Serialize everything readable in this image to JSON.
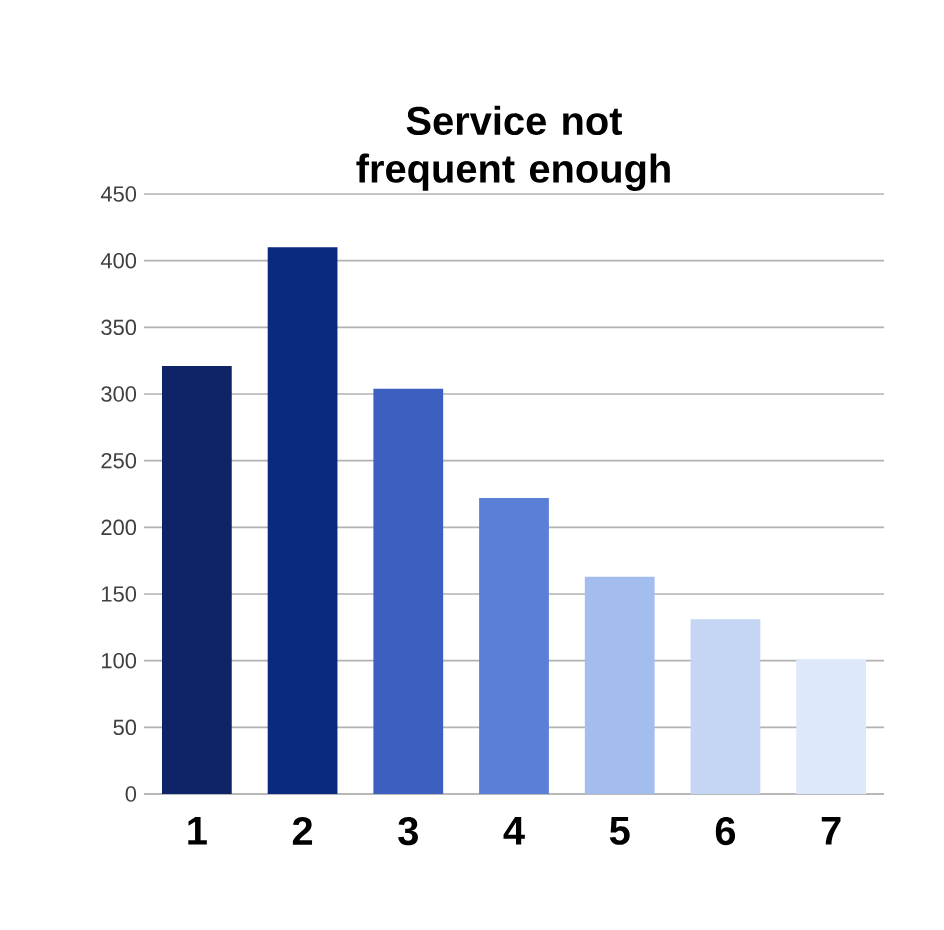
{
  "chart_data": {
    "type": "bar",
    "title": "Service not frequent enough",
    "categories": [
      "1",
      "2",
      "3",
      "4",
      "5",
      "6",
      "7"
    ],
    "values": [
      321,
      410,
      304,
      222,
      163,
      131,
      101
    ],
    "colors": [
      "#0f2466",
      "#0a2a80",
      "#3d5fbf",
      "#5b7fd6",
      "#a3bdee",
      "#c5d6f5",
      "#dde9fa"
    ],
    "ylim": [
      0,
      450
    ],
    "yticks": [
      0,
      50,
      100,
      150,
      200,
      250,
      300,
      350,
      400,
      450
    ],
    "grid": "y"
  }
}
